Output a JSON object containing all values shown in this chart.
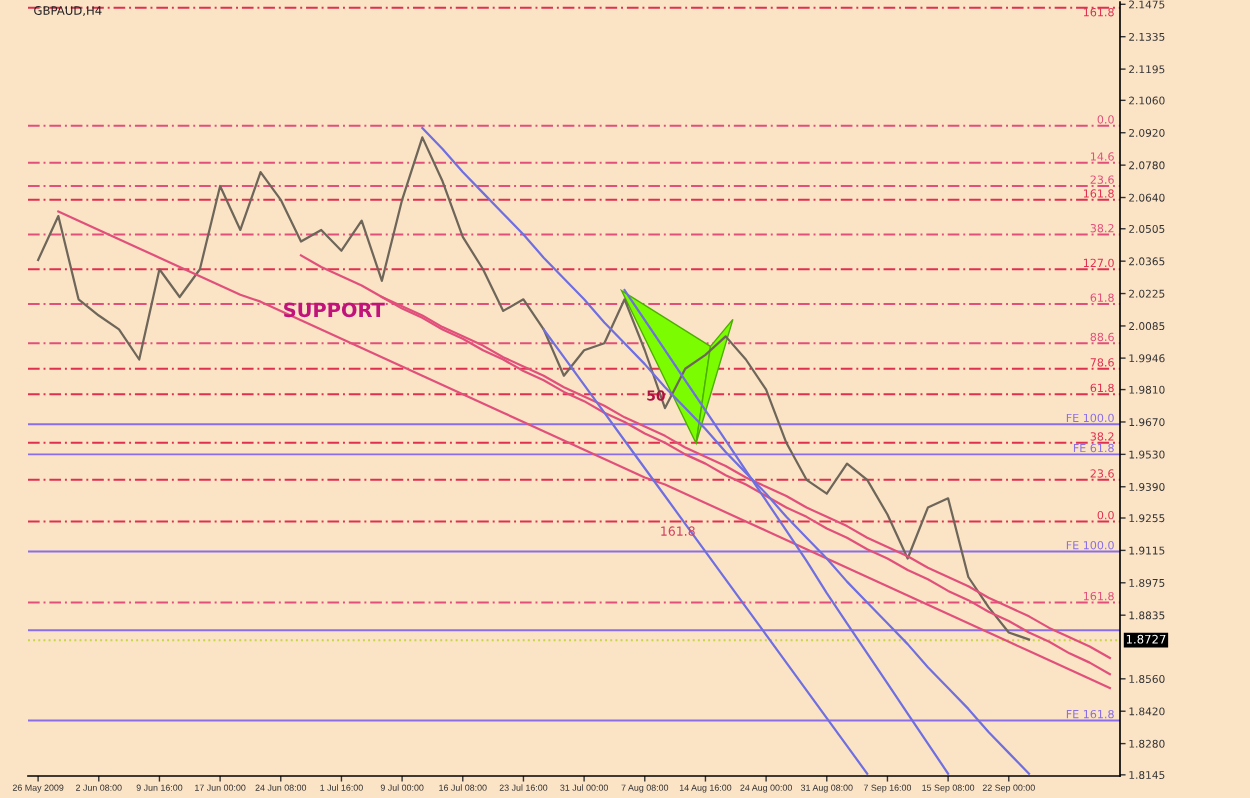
{
  "chart_data": {
    "type": "line",
    "title": "GBPAUD,H4",
    "categories": [
      "26 May 2009",
      null,
      null,
      "2 Jun 08:00",
      null,
      null,
      "9 Jun 16:00",
      null,
      null,
      "17 Jun 00:00",
      null,
      null,
      "24 Jun 08:00",
      null,
      null,
      "1 Jul 16:00",
      null,
      null,
      "9 Jul 00:00",
      null,
      null,
      "16 Jul 08:00",
      null,
      null,
      "23 Jul 16:00",
      null,
      null,
      "31 Jul 00:00",
      null,
      null,
      "7 Aug 08:00",
      null,
      null,
      "14 Aug 16:00",
      null,
      null,
      "24 Aug 00:00",
      null,
      null,
      "31 Aug 08:00",
      null,
      null,
      "7 Sep 16:00",
      null,
      null,
      "15 Sep 08:00",
      null,
      null,
      "22 Sep 00:00",
      null,
      null,
      null,
      null,
      null
    ],
    "series": [
      {
        "color": "#6e6659",
        "values": [
          2.037,
          2.056,
          2.02,
          2.013,
          2.007,
          1.994,
          2.033,
          2.021,
          2.033,
          2.069,
          2.05,
          2.075,
          2.063,
          2.045,
          2.05,
          2.041,
          2.054,
          2.028,
          2.063,
          2.09,
          2.071,
          2.047,
          2.033,
          2.015,
          2.02,
          2.007,
          1.987,
          1.998,
          2.001,
          2.02,
          1.998,
          1.973,
          1.99,
          1.996,
          2.004,
          1.994,
          1.981,
          1.958,
          1.942,
          1.936,
          1.949,
          1.942,
          1.927,
          1.908,
          1.93,
          1.934,
          1.9,
          1.887,
          1.876,
          1.873,
          null,
          null,
          null,
          null
        ]
      },
      {
        "color": "#e0507a",
        "values": [
          null,
          2.058,
          2.054,
          2.05,
          2.046,
          2.042,
          2.038,
          2.034,
          2.03,
          2.026,
          2.022,
          2.019,
          2.015,
          2.011,
          2.007,
          2.003,
          1.999,
          1.995,
          1.991,
          1.987,
          1.983,
          1.979,
          1.975,
          1.971,
          1.967,
          1.963,
          1.959,
          1.955,
          1.951,
          1.947,
          1.943,
          1.94,
          1.936,
          1.932,
          1.928,
          1.924,
          1.92,
          1.916,
          1.912,
          1.908,
          1.904,
          1.9,
          1.896,
          1.892,
          1.888,
          1.884,
          1.88,
          1.876,
          1.872,
          1.868,
          1.864,
          1.86,
          1.856,
          1.852
        ]
      },
      {
        "color": "#e0507a",
        "values": [
          null,
          null,
          null,
          null,
          null,
          null,
          null,
          null,
          null,
          null,
          null,
          null,
          null,
          2.039,
          2.034,
          2.03,
          2.026,
          2.021,
          2.017,
          2.013,
          2.008,
          2.004,
          2.0,
          1.995,
          1.991,
          1.987,
          1.982,
          1.978,
          1.974,
          1.969,
          1.965,
          1.961,
          1.956,
          1.952,
          1.948,
          1.943,
          1.939,
          1.935,
          1.93,
          1.926,
          1.922,
          1.917,
          1.913,
          1.909,
          1.904,
          1.9,
          1.896,
          1.891,
          1.887,
          1.883,
          1.878,
          1.874,
          1.87,
          1.865
        ]
      },
      {
        "color": "#e0507a",
        "values": [
          null,
          null,
          null,
          null,
          null,
          null,
          null,
          null,
          null,
          null,
          null,
          null,
          null,
          null,
          null,
          null,
          null,
          2.021,
          2.016,
          2.012,
          2.007,
          2.003,
          1.998,
          1.994,
          1.989,
          1.985,
          1.98,
          1.976,
          1.971,
          1.967,
          1.962,
          1.958,
          1.953,
          1.949,
          1.944,
          1.94,
          1.935,
          1.93,
          1.926,
          1.921,
          1.917,
          1.912,
          1.908,
          1.903,
          1.899,
          1.894,
          1.89,
          1.885,
          1.881,
          1.876,
          1.872,
          1.867,
          1.863,
          1.858
        ]
      },
      {
        "color": "#6f6fe0",
        "values": [
          null,
          null,
          null,
          null,
          null,
          null,
          null,
          null,
          null,
          null,
          null,
          null,
          null,
          null,
          null,
          null,
          null,
          null,
          null,
          2.094,
          2.085,
          2.075,
          2.066,
          2.057,
          2.048,
          2.038,
          2.029,
          2.02,
          2.01,
          2.001,
          1.992,
          1.982,
          1.973,
          1.964,
          1.954,
          1.945,
          1.936,
          1.926,
          1.917,
          1.908,
          1.898,
          1.889,
          1.88,
          1.871,
          1.861,
          1.852,
          1.843,
          1.833,
          1.824,
          1.815,
          null,
          null,
          null,
          null
        ]
      },
      {
        "color": "#6f6fe0",
        "values": [
          null,
          null,
          null,
          null,
          null,
          null,
          null,
          null,
          null,
          null,
          null,
          null,
          null,
          null,
          null,
          null,
          null,
          null,
          null,
          null,
          null,
          null,
          null,
          null,
          null,
          2.007,
          1.995,
          1.983,
          1.971,
          1.959,
          1.947,
          1.935,
          1.923,
          1.911,
          1.899,
          1.887,
          1.875,
          1.863,
          1.851,
          1.839,
          1.827,
          1.815,
          null,
          null,
          null,
          null,
          null,
          null,
          null,
          null,
          null,
          null,
          null,
          null
        ]
      },
      {
        "color": "#6f6fe0",
        "values": [
          null,
          null,
          null,
          null,
          null,
          null,
          null,
          null,
          null,
          null,
          null,
          null,
          null,
          null,
          null,
          null,
          null,
          null,
          null,
          null,
          null,
          null,
          null,
          null,
          null,
          null,
          null,
          null,
          null,
          2.024,
          2.011,
          1.998,
          1.985,
          1.972,
          1.959,
          1.946,
          1.933,
          1.92,
          1.907,
          1.893,
          1.88,
          1.867,
          1.854,
          1.841,
          1.828,
          1.815,
          null,
          null,
          null,
          null,
          null,
          null,
          null,
          null
        ]
      }
    ],
    "ylim": [
      1.814,
      2.1485
    ],
    "yticks": [
      2.1475,
      2.1335,
      2.1195,
      {
        "value": 2.106,
        "label": "2.1060"
      },
      {
        "value": 2.092,
        "label": "2.0920"
      },
      {
        "value": 2.078,
        "label": "2.0780"
      },
      {
        "value": 2.064,
        "label": "2.0640"
      },
      2.0505,
      2.0365,
      2.0225,
      2.0085,
      1.9946,
      {
        "value": 1.981,
        "label": "1.9810"
      },
      {
        "value": 1.967,
        "label": "1.9670"
      },
      {
        "value": 1.953,
        "label": "1.9530"
      },
      {
        "value": 1.939,
        "label": "1.9390"
      },
      1.9255,
      1.9115,
      1.8975,
      1.8835,
      {
        "value": 1.856,
        "label": "1.8560"
      },
      {
        "value": 1.842,
        "label": "1.8420"
      },
      {
        "value": 1.828,
        "label": "1.8280"
      },
      1.8145
    ],
    "ref_lines": [
      {
        "axis": "y",
        "value": 2.146,
        "color": "#e03050",
        "line_style": "dashed"
      },
      {
        "axis": "y",
        "value": 2.095,
        "color": "#e0507a",
        "line_style": "dashed"
      },
      {
        "axis": "y",
        "value": 2.079,
        "color": "#e0507a",
        "line_style": "dashed"
      },
      {
        "axis": "y",
        "value": 2.069,
        "color": "#e0507a",
        "line_style": "dashed"
      },
      {
        "axis": "y",
        "value": 2.063,
        "color": "#e03050",
        "line_style": "dashed"
      },
      {
        "axis": "y",
        "value": 2.048,
        "color": "#e0507a",
        "line_style": "dashed"
      },
      {
        "axis": "y",
        "value": 2.033,
        "color": "#e03050",
        "line_style": "dashed"
      },
      {
        "axis": "y",
        "value": 2.018,
        "color": "#e0507a",
        "line_style": "dashed"
      },
      {
        "axis": "y",
        "value": 2.001,
        "color": "#e0507a",
        "line_style": "dashed"
      },
      {
        "axis": "y",
        "value": 1.99,
        "color": "#e03050",
        "line_style": "dashed"
      },
      {
        "axis": "y",
        "value": 1.979,
        "color": "#e03050",
        "line_style": "dashed"
      },
      {
        "axis": "y",
        "value": 1.966,
        "color": "#8a6ee6",
        "line_style": "solid"
      },
      {
        "axis": "y",
        "value": 1.958,
        "color": "#e03050",
        "line_style": "dashed"
      },
      {
        "axis": "y",
        "value": 1.953,
        "color": "#8a6ee6",
        "line_style": "solid"
      },
      {
        "axis": "y",
        "value": 1.942,
        "color": "#e03050",
        "line_style": "dashed"
      },
      {
        "axis": "y",
        "value": 1.924,
        "color": "#e03050",
        "line_style": "dashed"
      },
      {
        "axis": "y",
        "value": 1.911,
        "color": "#8a6ee6",
        "line_style": "solid"
      },
      {
        "axis": "y",
        "value": 1.889,
        "color": "#e0507a",
        "line_style": "dashed"
      },
      {
        "axis": "y",
        "value": 1.877,
        "color": "#8a6ee6",
        "line_style": "solid"
      },
      {
        "axis": "y",
        "value": 1.8727,
        "label": "1.8727",
        "color": "#c8d44a",
        "line_style": "dotted"
      },
      {
        "axis": "y",
        "value": 1.838,
        "color": "#8a6ee6",
        "line_style": "solid"
      }
    ],
    "annotations": [
      "SUPPORT",
      "161.8",
      "50",
      {
        "text": "161.8",
        "y": 2.146
      },
      {
        "text": "0.0",
        "y": 2.095
      },
      {
        "text": "14.6",
        "y": 2.079
      },
      {
        "text": "23.6",
        "y": 2.069
      },
      {
        "text": "161.8",
        "y": 2.063
      },
      {
        "text": "38.2",
        "y": 2.048
      },
      {
        "text": "127.0",
        "y": 2.033
      },
      {
        "text": "61.8",
        "y": 2.018
      },
      {
        "text": "88.6",
        "y": 2.001
      },
      {
        "text": "78.6",
        "y": 1.99
      },
      {
        "text": "61.8",
        "y": 1.979
      },
      {
        "text": "FE 100.0",
        "y": 1.966
      },
      {
        "text": "38.2",
        "y": 1.958
      },
      {
        "text": "FE 61.8",
        "y": 1.953
      },
      {
        "text": "23.6",
        "y": 1.942
      },
      {
        "text": "0.0",
        "y": 1.924
      },
      {
        "text": "FE 100.0",
        "y": 1.911
      },
      {
        "text": "161.8",
        "y": 1.889
      },
      {
        "text": "FE 161.8",
        "y": 1.838
      }
    ]
  }
}
